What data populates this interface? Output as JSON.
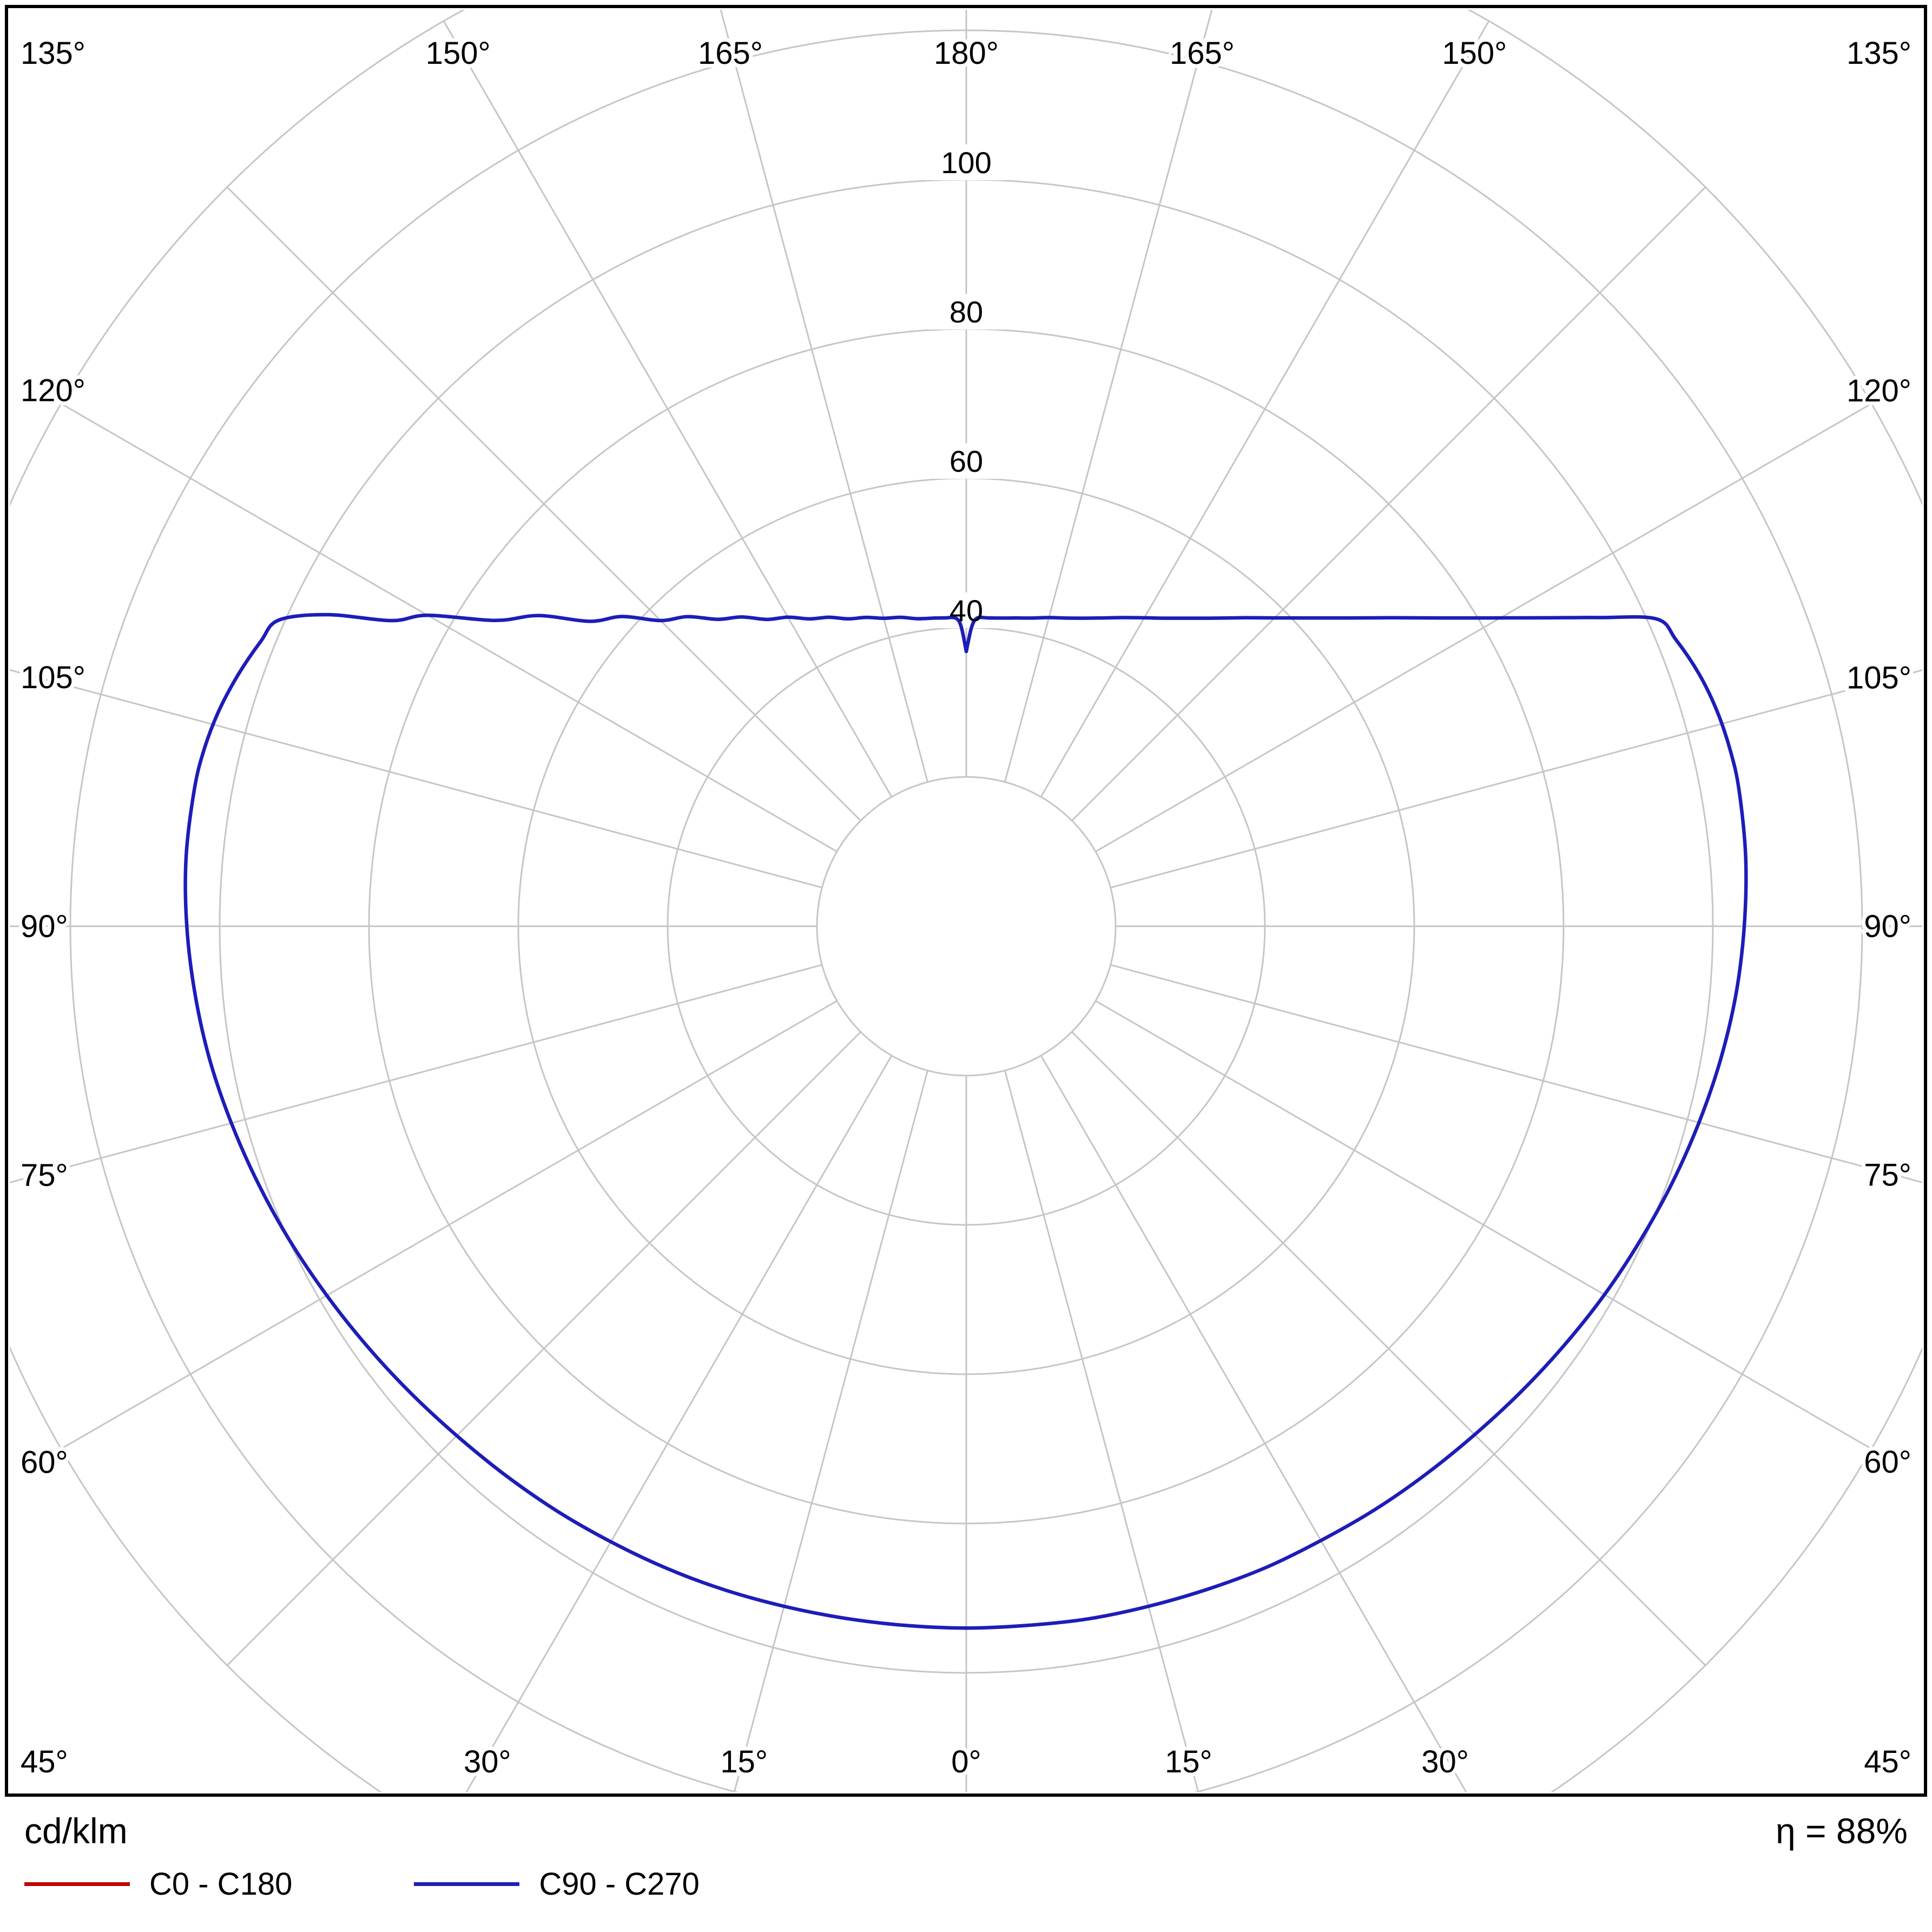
{
  "footer": {
    "units": "cd/klm",
    "efficiency": "η = 88%"
  },
  "legend": {
    "items": [
      {
        "label": "C0 - C180",
        "color": "#c00000"
      },
      {
        "label": "C90 - C270",
        "color": "#1d1db8"
      }
    ]
  },
  "chart_data": {
    "type": "line",
    "subtype": "polar-photometric-intensity-diagram",
    "title": "",
    "units": "cd/klm",
    "efficiency": "η = 88%",
    "grid_color": "#c6c6c6",
    "curve_width": 6.5,
    "ring_step": 20,
    "ring_max": 140,
    "inner_ring": 20,
    "angle_step": 15,
    "radial_ticks": [
      40,
      60,
      80,
      100
    ],
    "radial_tick_labels": [
      "40",
      "60",
      "80",
      "100"
    ],
    "angle_labels": [
      "0°",
      "15°",
      "30°",
      "45°",
      "60°",
      "75°",
      "90°",
      "105°",
      "120°",
      "135°",
      "150°",
      "165°",
      "180°"
    ],
    "series": [
      {
        "id": "c0-c180",
        "name": "C0 - C180",
        "color": "#c00000",
        "gamma": [],
        "left": [],
        "right": []
      },
      {
        "id": "c90-c270",
        "name": "C90 - C270",
        "color": "#1d1db8",
        "gamma": [
          0,
          5,
          10,
          15,
          20,
          25,
          30,
          35,
          40,
          45,
          50,
          55,
          60,
          65,
          70,
          75,
          80,
          85,
          90,
          95,
          100,
          103,
          106,
          109,
          112,
          114,
          116,
          118,
          120,
          123,
          126,
          129,
          132,
          135,
          138,
          141,
          144,
          147,
          150,
          153,
          156,
          159,
          162,
          165,
          168,
          171,
          174,
          176,
          178,
          179,
          180
        ],
        "right": [
          94.0,
          94.0,
          94.2,
          94.3,
          94.5,
          94.8,
          95.0,
          95.4,
          95.8,
          96.3,
          97.0,
          97.8,
          98.7,
          99.6,
          100.6,
          101.6,
          102.6,
          103.5,
          104.2,
          104.8,
          105.1,
          105.0,
          104.6,
          103.8,
          102.5,
          101.2,
          94.3,
          88.0,
          82.6,
          75.8,
          70.3,
          65.6,
          61.7,
          58.4,
          55.6,
          53.1,
          51.0,
          49.2,
          47.7,
          46.4,
          45.2,
          44.2,
          43.4,
          42.8,
          42.2,
          41.8,
          41.5,
          41.4,
          41.3,
          40.0,
          36.8
        ],
        "left": [
          94.0,
          94.0,
          94.1,
          94.3,
          94.6,
          94.9,
          95.2,
          95.6,
          96.0,
          96.5,
          97.2,
          98.0,
          98.9,
          99.9,
          100.9,
          101.9,
          102.9,
          103.7,
          104.4,
          104.9,
          105.0,
          104.8,
          104.2,
          103.2,
          101.9,
          100.8,
          95.2,
          87.2,
          83.3,
          75.2,
          70.8,
          64.9,
          62.0,
          57.9,
          55.8,
          52.9,
          51.2,
          49.0,
          47.8,
          46.2,
          45.3,
          44.1,
          43.5,
          42.7,
          42.3,
          41.7,
          41.5,
          41.4,
          41.3,
          40.2,
          36.8
        ]
      }
    ]
  }
}
